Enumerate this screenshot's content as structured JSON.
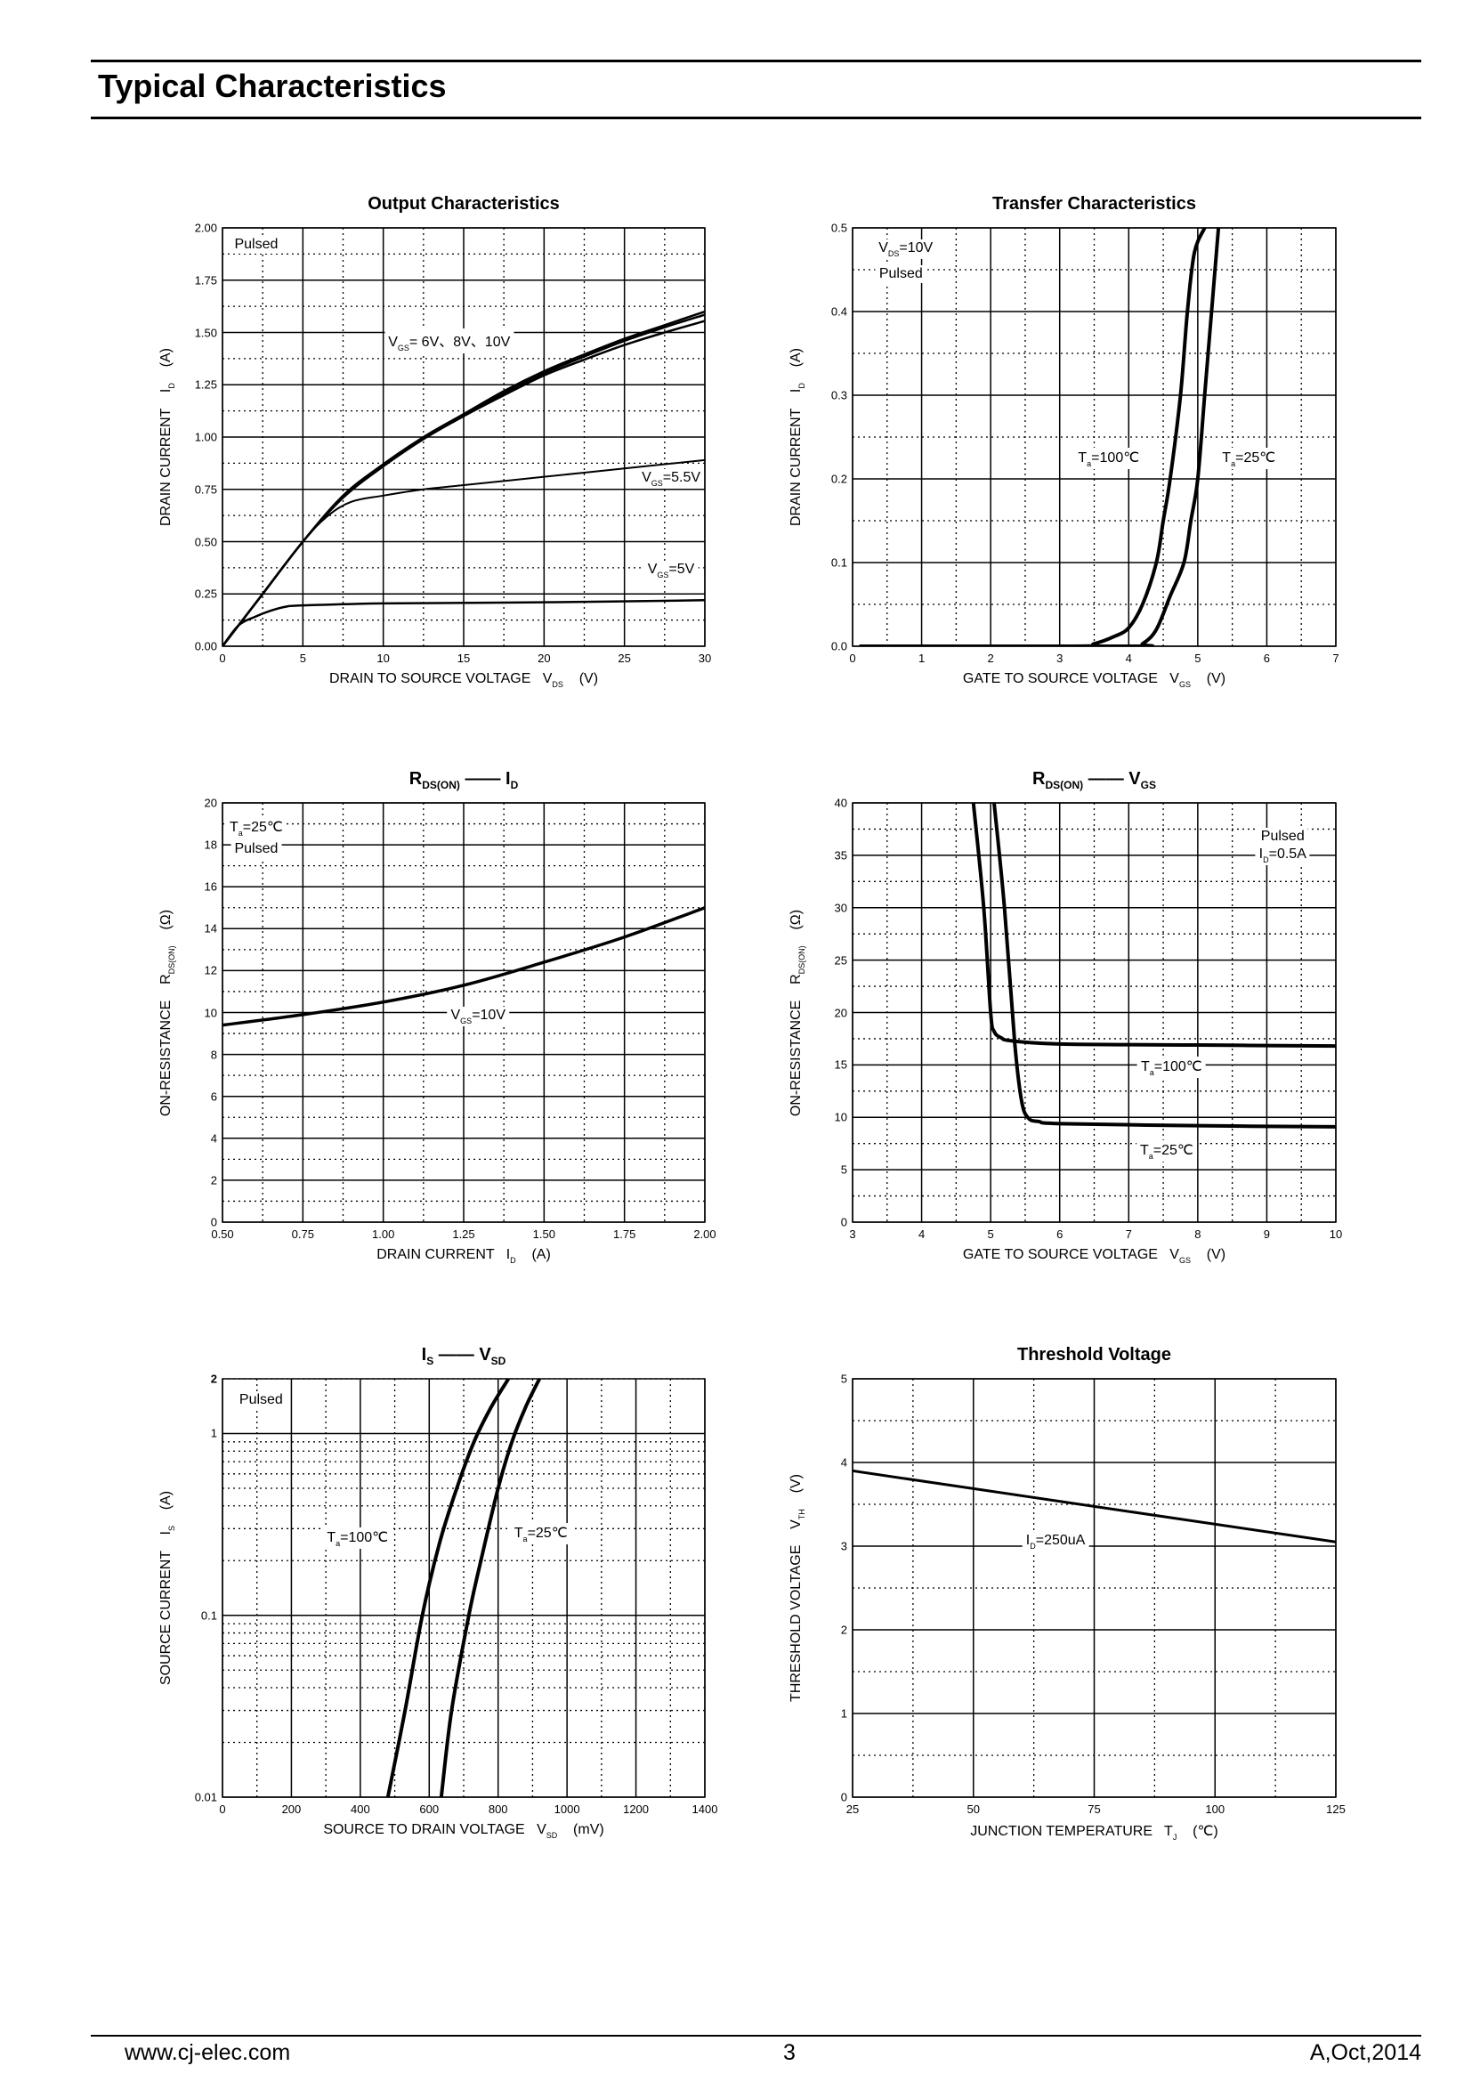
{
  "header": {
    "title": "Typical Characteristics"
  },
  "footer": {
    "website": "www.cj-elec.com",
    "page": "3",
    "revision": "A,Oct,2014"
  },
  "chart_data": [
    {
      "type": "line",
      "title": "Output Characteristics",
      "xlabel": "DRAIN TO SOURCE VOLTAGE   V_{DS}    (V)",
      "ylabel": "DRAIN CURRENT    I_{D}    (A)",
      "xlim": [
        0,
        30
      ],
      "xmajor": 5,
      "xminor": 2.5,
      "ylim": [
        0,
        2
      ],
      "ymajor": 0.25,
      "yminor": 0.125,
      "xticklabels": [
        "0",
        "5",
        "10",
        "15",
        "20",
        "25",
        "30"
      ],
      "yticklabels": [
        "0.00",
        "0.25",
        "0.50",
        "0.75",
        "1.00",
        "1.25",
        "1.50",
        "1.75",
        "2.00"
      ],
      "grid": true,
      "series": [
        {
          "name": "VGS=10V",
          "x": [
            0,
            1,
            2.5,
            5,
            7.5,
            10,
            12.5,
            15,
            17.5,
            20,
            22.5,
            25,
            27.5,
            30
          ],
          "y": [
            0,
            0.1,
            0.25,
            0.5,
            0.72,
            0.87,
            1.0,
            1.11,
            1.22,
            1.315,
            1.395,
            1.47,
            1.535,
            1.6
          ]
        },
        {
          "name": "VGS=8V",
          "x": [
            0,
            1,
            2.5,
            5,
            7.5,
            10,
            12.5,
            15,
            17.5,
            20,
            22.5,
            25,
            27.5,
            30
          ],
          "y": [
            0,
            0.1,
            0.25,
            0.5,
            0.715,
            0.865,
            0.995,
            1.105,
            1.21,
            1.305,
            1.385,
            1.46,
            1.525,
            1.585
          ]
        },
        {
          "name": "VGS=6V",
          "x": [
            0,
            1,
            2.5,
            5,
            7.5,
            10,
            12.5,
            15,
            17.5,
            20,
            22.5,
            25,
            27.5,
            30
          ],
          "y": [
            0,
            0.1,
            0.25,
            0.5,
            0.71,
            0.86,
            0.99,
            1.1,
            1.2,
            1.295,
            1.37,
            1.44,
            1.5,
            1.555
          ]
        },
        {
          "name": "VGS=5.5V",
          "x": [
            0,
            1,
            2.5,
            5,
            6.5,
            8,
            10,
            12.5,
            15,
            20,
            25,
            30
          ],
          "y": [
            0,
            0.1,
            0.25,
            0.5,
            0.62,
            0.69,
            0.72,
            0.75,
            0.77,
            0.81,
            0.85,
            0.89
          ]
        },
        {
          "name": "VGS=5V",
          "x": [
            0,
            1,
            2,
            3,
            4,
            5,
            10,
            20,
            30
          ],
          "y": [
            0,
            0.1,
            0.14,
            0.17,
            0.19,
            0.195,
            0.205,
            0.21,
            0.22
          ]
        }
      ],
      "annotations": [
        "Pulsed",
        "V_{GS}= 6V、8V、10V",
        "V_{GS}=5.5V",
        "V_{GS}=5V"
      ]
    },
    {
      "type": "line",
      "title": "Transfer Characteristics",
      "xlabel": "GATE TO SOURCE VOLTAGE   V_{GS}    (V)",
      "ylabel": "DRAIN CURRENT    I_{D}    (A)",
      "xlim": [
        0,
        7
      ],
      "xmajor": 1,
      "xminor": 0.5,
      "ylim": [
        0,
        0.5
      ],
      "ymajor": 0.1,
      "yminor": 0.05,
      "xticklabels": [
        "0",
        "1",
        "2",
        "3",
        "4",
        "5",
        "6",
        "7"
      ],
      "yticklabels": [
        "0.0",
        "0.1",
        "0.2",
        "0.3",
        "0.4",
        "0.5"
      ],
      "grid": true,
      "series": [
        {
          "name": "Ta=100°C",
          "x": [
            0.1,
            3.2,
            3.5,
            3.8,
            4.0,
            4.2,
            4.4,
            4.5,
            4.6,
            4.75,
            4.85,
            4.95,
            5.1
          ],
          "y": [
            0,
            0,
            0.003,
            0.012,
            0.022,
            0.05,
            0.1,
            0.15,
            0.2,
            0.3,
            0.4,
            0.47,
            0.5
          ]
        },
        {
          "name": "Ta=25°C",
          "x": [
            0.1,
            4.0,
            4.2,
            4.4,
            4.6,
            4.8,
            4.9,
            5.0,
            5.1,
            5.2,
            5.3
          ],
          "y": [
            0,
            0,
            0.003,
            0.02,
            0.06,
            0.1,
            0.15,
            0.2,
            0.3,
            0.4,
            0.5
          ]
        }
      ],
      "annotations": [
        "V_{DS}=10V",
        "Pulsed",
        "T_{a}=100℃",
        "T_{a}=25℃"
      ]
    },
    {
      "type": "line",
      "title": "R_{DS(ON)} —— I_{D}",
      "xlabel": "DRAIN CURRENT   I_{D}    (A)",
      "ylabel": "ON-RESISTANCE    R_{DS(ON)}    (Ω)",
      "xlim": [
        0.5,
        2.0
      ],
      "xmajor": 0.25,
      "xminor": 0.125,
      "ylim": [
        0,
        20
      ],
      "ymajor": 2,
      "yminor": 1,
      "xticklabels": [
        "0.50",
        "0.75",
        "1.00",
        "1.25",
        "1.50",
        "1.75",
        "2.00"
      ],
      "yticklabels": [
        "0",
        "2",
        "4",
        "6",
        "8",
        "10",
        "12",
        "14",
        "16",
        "18",
        "20"
      ],
      "grid": true,
      "series": [
        {
          "name": "VGS=10V",
          "x": [
            0.5,
            0.75,
            1.0,
            1.25,
            1.5,
            1.75,
            2.0
          ],
          "y": [
            9.4,
            9.9,
            10.5,
            11.3,
            12.4,
            13.6,
            15.0
          ]
        }
      ],
      "annotations": [
        "T_{a}=25℃",
        "Pulsed",
        "V_{GS}=10V"
      ]
    },
    {
      "type": "line",
      "title": "R_{DS(ON)} —— V_{GS}",
      "xlabel": "GATE TO SOURCE VOLTAGE   V_{GS}    (V)",
      "ylabel": "ON-RESISTANCE    R_{DS(ON)}    (Ω)",
      "xlim": [
        3,
        10
      ],
      "xmajor": 1,
      "xminor": 0.5,
      "ylim": [
        0,
        40
      ],
      "ymajor": 5,
      "yminor": 2.5,
      "xticklabels": [
        "3",
        "4",
        "5",
        "6",
        "7",
        "8",
        "9",
        "10"
      ],
      "yticklabels": [
        "0",
        "5",
        "10",
        "15",
        "20",
        "25",
        "30",
        "35",
        "40"
      ],
      "grid": true,
      "series": [
        {
          "name": "Ta=100°C",
          "x": [
            4.75,
            4.9,
            5.0,
            5.05,
            5.15,
            5.3,
            6,
            8,
            10
          ],
          "y": [
            40,
            30,
            20,
            18.2,
            17.6,
            17.3,
            17.0,
            16.9,
            16.8
          ]
        },
        {
          "name": "Ta=25°C",
          "x": [
            5.05,
            5.2,
            5.35,
            5.45,
            5.55,
            5.7,
            6,
            8,
            10
          ],
          "y": [
            40,
            30,
            17,
            11.5,
            9.9,
            9.6,
            9.4,
            9.2,
            9.1
          ]
        }
      ],
      "annotations": [
        "Pulsed",
        "I_{D}=0.5A",
        "T_{a}=100℃",
        "T_{a}=25℃"
      ]
    },
    {
      "type": "line",
      "title": "I_{S} —— V_{SD}",
      "xlabel": "SOURCE TO DRAIN VOLTAGE   V_{SD}    (mV)",
      "ylabel": "SOURCE CURRENT    I_{S}    (A)",
      "xlim": [
        0,
        1400
      ],
      "xmajor": 200,
      "xminor": 100,
      "ylim": [
        0.01,
        2
      ],
      "yscale": "log",
      "xticklabels": [
        "0",
        "200",
        "400",
        "600",
        "800",
        "1000",
        "1200",
        "1400"
      ],
      "yticks": [
        0.01,
        0.1,
        1,
        2
      ],
      "yticklabels": [
        "0.01",
        "0.1",
        "1",
        "2"
      ],
      "grid": true,
      "series": [
        {
          "name": "Ta=100°C",
          "x": [
            480,
            530,
            580,
            630,
            680,
            730,
            780,
            830
          ],
          "y": [
            0.01,
            0.03,
            0.1,
            0.25,
            0.5,
            0.9,
            1.4,
            2
          ]
        },
        {
          "name": "Ta=25°C",
          "x": [
            635,
            665,
            715,
            750,
            800,
            840,
            880,
            920
          ],
          "y": [
            0.01,
            0.03,
            0.1,
            0.2,
            0.5,
            0.9,
            1.4,
            2
          ]
        }
      ],
      "annotations": [
        "Pulsed",
        "T_{a}=100℃",
        "T_{a}=25℃"
      ]
    },
    {
      "type": "line",
      "title": "Threshold Voltage",
      "xlabel": "JUNCTION TEMPERATURE   T_{J}    (℃)",
      "ylabel": "THRESHOLD VOLTAGE    V_{TH}    (V)",
      "xlim": [
        25,
        125
      ],
      "xmajor": 25,
      "xminor": 12.5,
      "ylim": [
        0,
        5
      ],
      "ymajor": 1,
      "yminor": 0.5,
      "xticklabels": [
        "25",
        "50",
        "75",
        "100",
        "125"
      ],
      "yticklabels": [
        "0",
        "1",
        "2",
        "3",
        "4",
        "5"
      ],
      "grid": true,
      "series": [
        {
          "name": "ID=250uA",
          "x": [
            25,
            125
          ],
          "y": [
            3.9,
            3.05
          ]
        }
      ],
      "annotations": [
        "I_{D}=250uA"
      ]
    }
  ]
}
